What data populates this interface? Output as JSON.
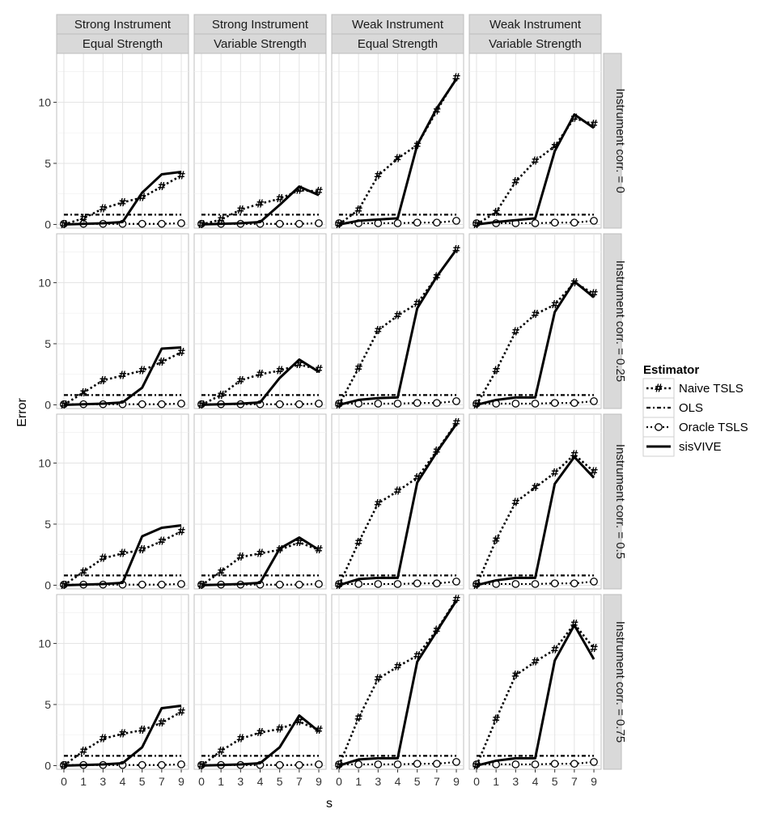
{
  "chart_data": {
    "type": "line",
    "xlabel": "s",
    "ylabel": "Error",
    "x": [
      0,
      1,
      3,
      4,
      5,
      7,
      9
    ],
    "x_tick_labels": [
      "0",
      "1",
      "3",
      "4",
      "5",
      "7",
      "9"
    ],
    "y_ticks": [
      0,
      5,
      10
    ],
    "y_tick_labels": [
      "0",
      "5",
      "10"
    ],
    "ylim": [
      -0.3,
      14
    ],
    "grid": true,
    "col_facets": [
      {
        "top": "Strong Instrument",
        "bottom": "Equal Strength"
      },
      {
        "top": "Strong Instrument",
        "bottom": "Variable Strength"
      },
      {
        "top": "Weak Instrument",
        "bottom": "Equal Strength"
      },
      {
        "top": "Weak Instrument",
        "bottom": "Variable Strength"
      }
    ],
    "row_facets": [
      "Instrument corr. = 0",
      "Instrument corr. = 0.25",
      "Instrument corr. = 0.5",
      "Instrument corr. = 0.75"
    ],
    "legend": {
      "title": "Estimator",
      "position": "right",
      "entries": [
        {
          "name": "Naive TSLS",
          "style": "dotted-hash"
        },
        {
          "name": "OLS",
          "style": "dotdash"
        },
        {
          "name": "Oracle TSLS",
          "style": "dotted-circle"
        },
        {
          "name": "sisVIVE",
          "style": "solid"
        }
      ]
    },
    "panels": [
      [
        {
          "naive": [
            0,
            0.5,
            1.3,
            1.8,
            2.2,
            3.1,
            4.0
          ],
          "ols": 0.8,
          "oracle": [
            0.05,
            0.05,
            0.05,
            0.05,
            0.05,
            0.05,
            0.1
          ],
          "sisvive": [
            0,
            0.05,
            0.1,
            0.2,
            2.6,
            4.1,
            4.3
          ]
        },
        {
          "naive": [
            0,
            0.4,
            1.2,
            1.7,
            2.1,
            2.8,
            2.7
          ],
          "ols": 0.8,
          "oracle": [
            0.05,
            0.05,
            0.05,
            0.05,
            0.05,
            0.05,
            0.1
          ],
          "sisvive": [
            0,
            0.05,
            0.1,
            0.2,
            1.6,
            3.1,
            2.4
          ]
        },
        {
          "naive": [
            0,
            1.2,
            4.0,
            5.4,
            6.5,
            9.3,
            12.0
          ],
          "ols": 0.8,
          "oracle": [
            0.1,
            0.1,
            0.1,
            0.1,
            0.15,
            0.15,
            0.3
          ],
          "sisvive": [
            0,
            0.3,
            0.4,
            0.5,
            6.5,
            9.5,
            11.9
          ]
        },
        {
          "naive": [
            0,
            1.0,
            3.5,
            5.2,
            6.4,
            8.7,
            8.2
          ],
          "ols": 0.8,
          "oracle": [
            0.1,
            0.1,
            0.1,
            0.1,
            0.15,
            0.15,
            0.3
          ],
          "sisvive": [
            0,
            0.2,
            0.35,
            0.5,
            6.0,
            9.0,
            7.9
          ]
        }
      ],
      [
        {
          "naive": [
            0,
            1.0,
            2.0,
            2.4,
            2.8,
            3.5,
            4.3
          ],
          "ols": 0.8,
          "oracle": [
            0.05,
            0.05,
            0.05,
            0.05,
            0.05,
            0.05,
            0.1
          ],
          "sisvive": [
            0,
            0.05,
            0.1,
            0.2,
            1.4,
            4.6,
            4.7
          ]
        },
        {
          "naive": [
            0,
            0.8,
            2.0,
            2.5,
            2.8,
            3.3,
            2.9
          ],
          "ols": 0.8,
          "oracle": [
            0.05,
            0.05,
            0.05,
            0.05,
            0.05,
            0.05,
            0.1
          ],
          "sisvive": [
            0,
            0.05,
            0.1,
            0.2,
            2.2,
            3.7,
            2.7
          ]
        },
        {
          "naive": [
            0,
            3.0,
            6.1,
            7.3,
            8.3,
            10.5,
            12.7
          ],
          "ols": 0.8,
          "oracle": [
            0.1,
            0.1,
            0.1,
            0.1,
            0.15,
            0.15,
            0.3
          ],
          "sisvive": [
            0,
            0.4,
            0.55,
            0.6,
            7.9,
            10.5,
            12.7
          ]
        },
        {
          "naive": [
            0,
            2.8,
            6.0,
            7.4,
            8.2,
            10.0,
            9.1
          ],
          "ols": 0.8,
          "oracle": [
            0.1,
            0.1,
            0.1,
            0.1,
            0.15,
            0.15,
            0.3
          ],
          "sisvive": [
            0,
            0.4,
            0.6,
            0.6,
            7.6,
            10.1,
            8.8
          ]
        }
      ],
      [
        {
          "naive": [
            0,
            1.1,
            2.2,
            2.6,
            2.9,
            3.6,
            4.4
          ],
          "ols": 0.8,
          "oracle": [
            0.05,
            0.05,
            0.05,
            0.05,
            0.05,
            0.05,
            0.1
          ],
          "sisvive": [
            0,
            0.05,
            0.1,
            0.2,
            4.0,
            4.7,
            4.9
          ]
        },
        {
          "naive": [
            0,
            1.1,
            2.3,
            2.6,
            2.9,
            3.5,
            2.9
          ],
          "ols": 0.8,
          "oracle": [
            0.05,
            0.05,
            0.05,
            0.05,
            0.05,
            0.05,
            0.1
          ],
          "sisvive": [
            0,
            0.05,
            0.1,
            0.2,
            3.0,
            3.9,
            2.9
          ]
        },
        {
          "naive": [
            0,
            3.5,
            6.7,
            7.7,
            8.8,
            11.0,
            13.3
          ],
          "ols": 0.8,
          "oracle": [
            0.1,
            0.1,
            0.1,
            0.1,
            0.15,
            0.15,
            0.3
          ],
          "sisvive": [
            0,
            0.5,
            0.6,
            0.6,
            8.4,
            10.9,
            13.2
          ]
        },
        {
          "naive": [
            0,
            3.7,
            6.8,
            8.0,
            9.2,
            10.7,
            9.3
          ],
          "ols": 0.8,
          "oracle": [
            0.1,
            0.1,
            0.1,
            0.1,
            0.15,
            0.15,
            0.3
          ],
          "sisvive": [
            0,
            0.4,
            0.6,
            0.6,
            8.3,
            10.5,
            8.8
          ]
        }
      ],
      [
        {
          "naive": [
            0,
            1.2,
            2.2,
            2.6,
            2.9,
            3.5,
            4.4
          ],
          "ols": 0.8,
          "oracle": [
            0.05,
            0.05,
            0.05,
            0.05,
            0.05,
            0.05,
            0.1
          ],
          "sisvive": [
            0,
            0.05,
            0.1,
            0.2,
            1.5,
            4.7,
            4.9
          ]
        },
        {
          "naive": [
            0,
            1.2,
            2.2,
            2.7,
            3.0,
            3.6,
            2.9
          ],
          "ols": 0.8,
          "oracle": [
            0.05,
            0.05,
            0.05,
            0.05,
            0.05,
            0.05,
            0.1
          ],
          "sisvive": [
            0,
            0.05,
            0.1,
            0.2,
            1.5,
            4.1,
            2.8
          ]
        },
        {
          "naive": [
            0,
            3.9,
            7.1,
            8.1,
            9.0,
            11.1,
            13.6
          ],
          "ols": 0.8,
          "oracle": [
            0.1,
            0.1,
            0.1,
            0.1,
            0.15,
            0.15,
            0.3
          ],
          "sisvive": [
            0,
            0.5,
            0.6,
            0.6,
            8.5,
            11.0,
            13.5
          ]
        },
        {
          "naive": [
            0,
            3.8,
            7.4,
            8.5,
            9.5,
            11.6,
            9.6
          ],
          "ols": 0.8,
          "oracle": [
            0.1,
            0.1,
            0.1,
            0.1,
            0.15,
            0.15,
            0.3
          ],
          "sisvive": [
            0,
            0.4,
            0.6,
            0.6,
            8.6,
            11.5,
            8.7
          ]
        }
      ]
    ]
  }
}
